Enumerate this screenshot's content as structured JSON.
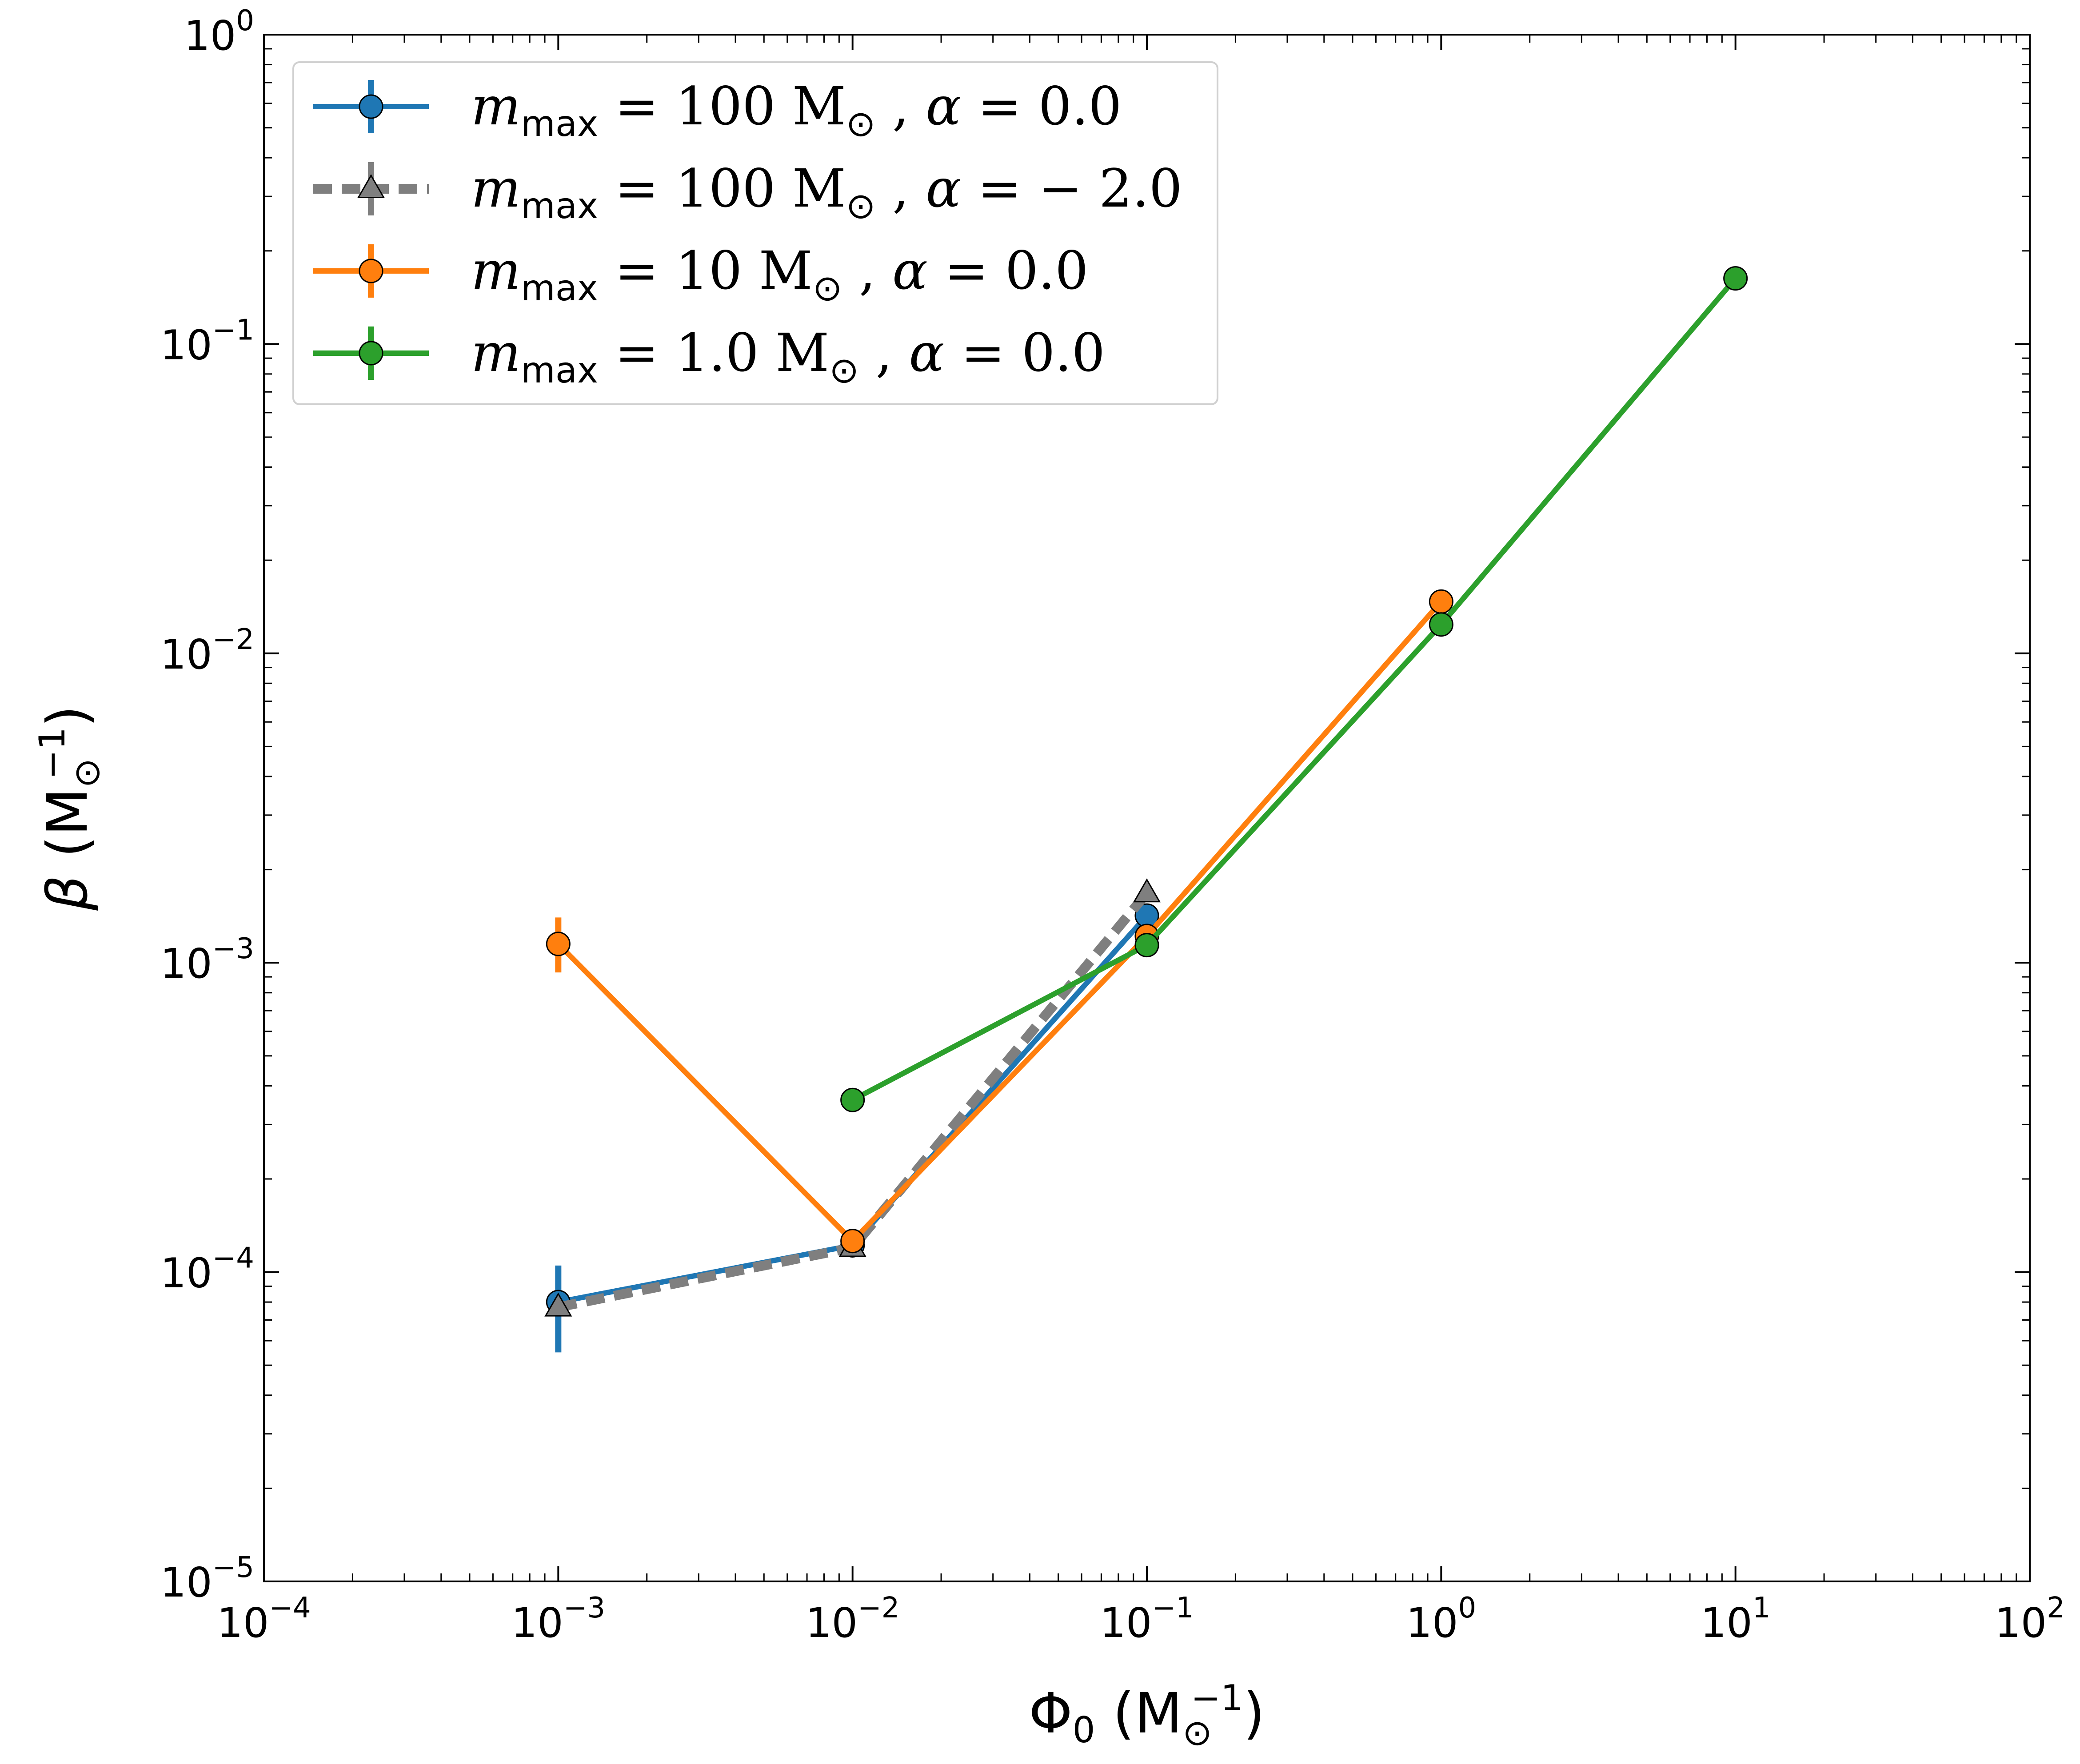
{
  "chart_data": {
    "type": "line",
    "x_scale": "log",
    "y_scale": "log",
    "xlim": [
      0.0001,
      100
    ],
    "ylim": [
      1e-05,
      1
    ],
    "xlabel": {
      "symbol": "Φ",
      "sub": "0",
      "unit": "M",
      "unit_sub": "⊙",
      "unit_sup": "−1"
    },
    "ylabel": {
      "symbol": "β",
      "unit": "M",
      "unit_sub": "⊙",
      "unit_sup": "−1"
    },
    "x_ticks": [
      {
        "value": 0.0001,
        "base": "10",
        "exp": "−4"
      },
      {
        "value": 0.001,
        "base": "10",
        "exp": "−3"
      },
      {
        "value": 0.01,
        "base": "10",
        "exp": "−2"
      },
      {
        "value": 0.1,
        "base": "10",
        "exp": "−1"
      },
      {
        "value": 1,
        "base": "10",
        "exp": "0"
      },
      {
        "value": 10,
        "base": "10",
        "exp": "1"
      },
      {
        "value": 100,
        "base": "10",
        "exp": "2"
      }
    ],
    "y_ticks": [
      {
        "value": 1e-05,
        "base": "10",
        "exp": "−5"
      },
      {
        "value": 0.0001,
        "base": "10",
        "exp": "−4"
      },
      {
        "value": 0.001,
        "base": "10",
        "exp": "−3"
      },
      {
        "value": 0.01,
        "base": "10",
        "exp": "−2"
      },
      {
        "value": 0.1,
        "base": "10",
        "exp": "−1"
      },
      {
        "value": 1,
        "base": "10",
        "exp": "0"
      }
    ],
    "legend_placement": "upper-left",
    "series": [
      {
        "name": {
          "m": "m",
          "sub": "max",
          "eq": " = 100 M",
          "sun": "⊙",
          "comma": " , ",
          "alpha": "α",
          "aeq": " = 0.0"
        },
        "color": "#1f77b4",
        "marker": "circle",
        "dash": "solid",
        "x": [
          0.001,
          0.01,
          0.1
        ],
        "y": [
          8e-05,
          0.000122,
          0.00142
        ],
        "yerr_low": [
          2.5e-05,
          3e-06,
          5e-05
        ],
        "yerr_high": [
          2.5e-05,
          3e-06,
          5e-05
        ]
      },
      {
        "name": {
          "m": "m",
          "sub": "max",
          "eq": " = 100 M",
          "sun": "⊙",
          "comma": " , ",
          "alpha": "α",
          "aeq": " = − 2.0"
        },
        "color": "#7f7f7f",
        "marker": "triangle",
        "dash": "dashed",
        "x": [
          0.001,
          0.01,
          0.1
        ],
        "y": [
          7.7e-05,
          0.00012,
          0.00168
        ],
        "yerr_low": [
          5e-06,
          3e-06,
          5e-05
        ],
        "yerr_high": [
          5e-06,
          3e-06,
          5e-05
        ]
      },
      {
        "name": {
          "m": "m",
          "sub": "max",
          "eq": " = 10 M",
          "sun": "⊙",
          "comma": " , ",
          "alpha": "α",
          "aeq": " = 0.0"
        },
        "color": "#ff7f0e",
        "marker": "circle",
        "dash": "solid",
        "x": [
          0.001,
          0.01,
          0.1,
          1
        ],
        "y": [
          0.00115,
          0.000126,
          0.00122,
          0.0147
        ],
        "yerr_low": [
          0.00022,
          3e-06,
          3e-05,
          0.0003
        ],
        "yerr_high": [
          0.00025,
          3e-06,
          3e-05,
          0.0003
        ]
      },
      {
        "name": {
          "m": "m",
          "sub": "max",
          "eq": " = 1.0 M",
          "sun": "⊙",
          "comma": " , ",
          "alpha": "α",
          "aeq": " = 0.0"
        },
        "color": "#2ca02c",
        "marker": "circle",
        "dash": "solid",
        "x": [
          0.01,
          0.1,
          1,
          10
        ],
        "y": [
          0.00036,
          0.00114,
          0.0124,
          0.163
        ],
        "yerr_low": [
          5e-06,
          2e-05,
          0.0002,
          0.002
        ],
        "yerr_high": [
          5e-06,
          2e-05,
          0.0002,
          0.002
        ]
      }
    ]
  }
}
